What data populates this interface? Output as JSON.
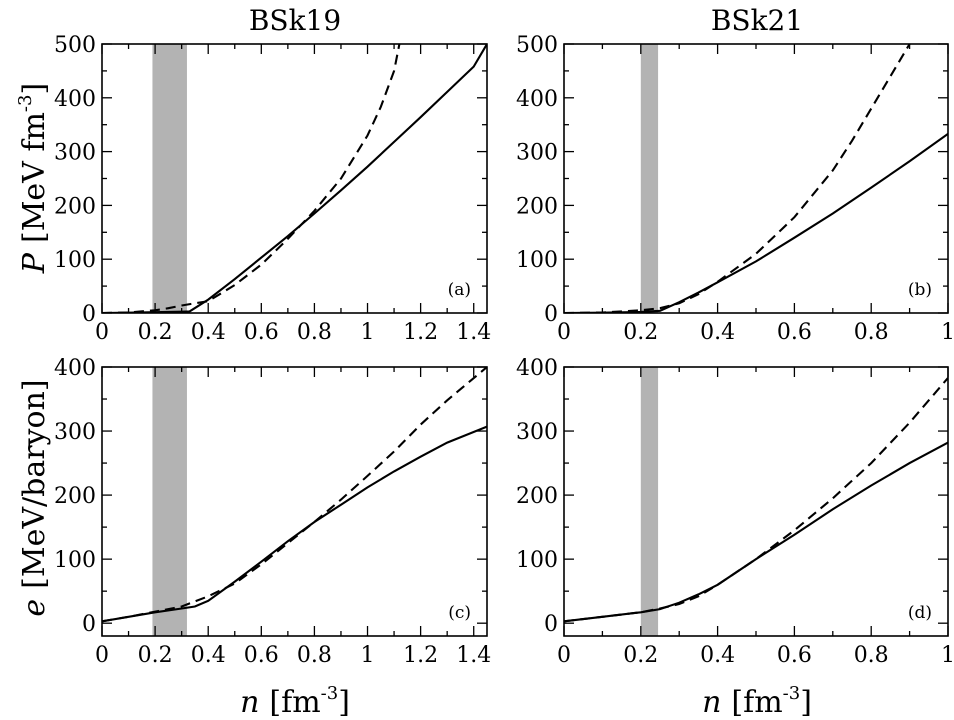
{
  "columns": [
    "BSk19",
    "BSk21"
  ],
  "ylabels": {
    "top": {
      "var": "P",
      "text": "[MeV fm",
      "sup": "-3",
      "close": "]"
    },
    "bottom": {
      "var": "e",
      "text": "[MeV/baryon]"
    }
  },
  "xlabel": {
    "var": "n",
    "text": "[fm",
    "sup": "-3",
    "close": "]"
  },
  "chart_data": [
    {
      "type": "line",
      "panel": "a",
      "panel_label": "(a)",
      "title": "BSk19",
      "xlim": [
        0,
        1.45
      ],
      "ylim": [
        0,
        500
      ],
      "xticks": [
        0,
        0.2,
        0.4,
        0.6,
        0.8,
        1,
        1.2,
        1.4
      ],
      "xtick_labels": [
        "0",
        "0.2",
        "0.4",
        "0.6",
        "0.8",
        "1",
        "1.2",
        "1.4"
      ],
      "yticks": [
        0,
        100,
        200,
        300,
        400,
        500
      ],
      "ytick_labels": [
        "0",
        "100",
        "200",
        "300",
        "400",
        "500"
      ],
      "band": [
        0.19,
        0.32
      ],
      "band_color": "#b3b3b3",
      "series": [
        {
          "style": "solid",
          "x": [
            0,
            0.1,
            0.2,
            0.3,
            0.33,
            0.4,
            0.5,
            0.6,
            0.7,
            0.8,
            0.9,
            1.0,
            1.1,
            1.2,
            1.3,
            1.4,
            1.45
          ],
          "y": [
            0,
            0.5,
            1.5,
            2.5,
            3,
            25,
            63,
            103,
            143,
            185,
            228,
            272,
            318,
            364,
            411,
            458,
            500
          ]
        },
        {
          "style": "dashed",
          "x": [
            0,
            0.1,
            0.2,
            0.25,
            0.3,
            0.35,
            0.4,
            0.5,
            0.6,
            0.7,
            0.8,
            0.9,
            1.0,
            1.05,
            1.1,
            1.12
          ],
          "y": [
            0,
            1,
            5,
            9,
            14,
            18,
            22,
            52,
            90,
            138,
            190,
            250,
            330,
            383,
            450,
            500
          ]
        }
      ]
    },
    {
      "type": "line",
      "panel": "b",
      "panel_label": "(b)",
      "title": "BSk21",
      "xlim": [
        0,
        1
      ],
      "ylim": [
        0,
        500
      ],
      "xticks": [
        0,
        0.2,
        0.4,
        0.6,
        0.8,
        1
      ],
      "xtick_labels": [
        "0",
        "0.2",
        "0.4",
        "0.6",
        "0.8",
        "1"
      ],
      "yticks": [
        0,
        100,
        200,
        300,
        400,
        500
      ],
      "ytick_labels": [
        "0",
        "100",
        "200",
        "300",
        "400",
        "500"
      ],
      "band": [
        0.2,
        0.245
      ],
      "band_color": "#b3b3b3",
      "series": [
        {
          "style": "solid",
          "x": [
            0,
            0.1,
            0.2,
            0.25,
            0.3,
            0.35,
            0.4,
            0.5,
            0.6,
            0.7,
            0.8,
            0.9,
            1.0
          ],
          "y": [
            0,
            0.5,
            2,
            4,
            20,
            38,
            57,
            96,
            140,
            185,
            233,
            282,
            333
          ]
        },
        {
          "style": "dashed",
          "x": [
            0,
            0.1,
            0.2,
            0.25,
            0.3,
            0.35,
            0.4,
            0.5,
            0.6,
            0.7,
            0.75,
            0.8,
            0.85,
            0.9
          ],
          "y": [
            0,
            1,
            5,
            9,
            18,
            35,
            58,
            110,
            178,
            265,
            320,
            380,
            440,
            500
          ]
        }
      ]
    },
    {
      "type": "line",
      "panel": "c",
      "panel_label": "(c)",
      "xlim": [
        0,
        1.45
      ],
      "ylim": [
        -20,
        400
      ],
      "xticks": [
        0,
        0.2,
        0.4,
        0.6,
        0.8,
        1,
        1.2,
        1.4
      ],
      "xtick_labels": [
        "0",
        "0.2",
        "0.4",
        "0.6",
        "0.8",
        "1",
        "1.2",
        "1.4"
      ],
      "yticks": [
        0,
        100,
        200,
        300,
        400
      ],
      "ytick_labels": [
        "0",
        "100",
        "200",
        "300",
        "400"
      ],
      "band": [
        0.19,
        0.32
      ],
      "band_color": "#b3b3b3",
      "series": [
        {
          "style": "solid",
          "x": [
            0,
            0.1,
            0.2,
            0.3,
            0.35,
            0.4,
            0.5,
            0.6,
            0.7,
            0.8,
            0.9,
            1.0,
            1.1,
            1.2,
            1.3,
            1.45
          ],
          "y": [
            3,
            10,
            17,
            23,
            26,
            35,
            65,
            96,
            128,
            158,
            185,
            212,
            237,
            260,
            282,
            307
          ]
        },
        {
          "style": "dashed",
          "x": [
            0,
            0.1,
            0.2,
            0.3,
            0.4,
            0.5,
            0.6,
            0.7,
            0.8,
            0.9,
            1.0,
            1.1,
            1.2,
            1.3,
            1.45
          ],
          "y": [
            3,
            10,
            18,
            26,
            42,
            62,
            92,
            125,
            158,
            193,
            230,
            268,
            310,
            348,
            400
          ]
        }
      ]
    },
    {
      "type": "line",
      "panel": "d",
      "panel_label": "(d)",
      "xlim": [
        0,
        1
      ],
      "ylim": [
        -20,
        400
      ],
      "xticks": [
        0,
        0.2,
        0.4,
        0.6,
        0.8,
        1
      ],
      "xtick_labels": [
        "0",
        "0.2",
        "0.4",
        "0.6",
        "0.8",
        "1"
      ],
      "yticks": [
        0,
        100,
        200,
        300,
        400
      ],
      "ytick_labels": [
        "0",
        "100",
        "200",
        "300",
        "400"
      ],
      "band": [
        0.2,
        0.245
      ],
      "band_color": "#b3b3b3",
      "series": [
        {
          "style": "solid",
          "x": [
            0,
            0.1,
            0.2,
            0.25,
            0.3,
            0.35,
            0.4,
            0.5,
            0.6,
            0.7,
            0.8,
            0.9,
            1.0
          ],
          "y": [
            3,
            10,
            17,
            22,
            32,
            45,
            60,
            100,
            138,
            178,
            215,
            250,
            282
          ]
        },
        {
          "style": "dashed",
          "x": [
            0,
            0.1,
            0.2,
            0.25,
            0.3,
            0.35,
            0.4,
            0.5,
            0.6,
            0.7,
            0.8,
            0.9,
            1.0
          ],
          "y": [
            3,
            10,
            17,
            23,
            30,
            42,
            60,
            100,
            145,
            195,
            250,
            313,
            383
          ]
        }
      ]
    }
  ]
}
